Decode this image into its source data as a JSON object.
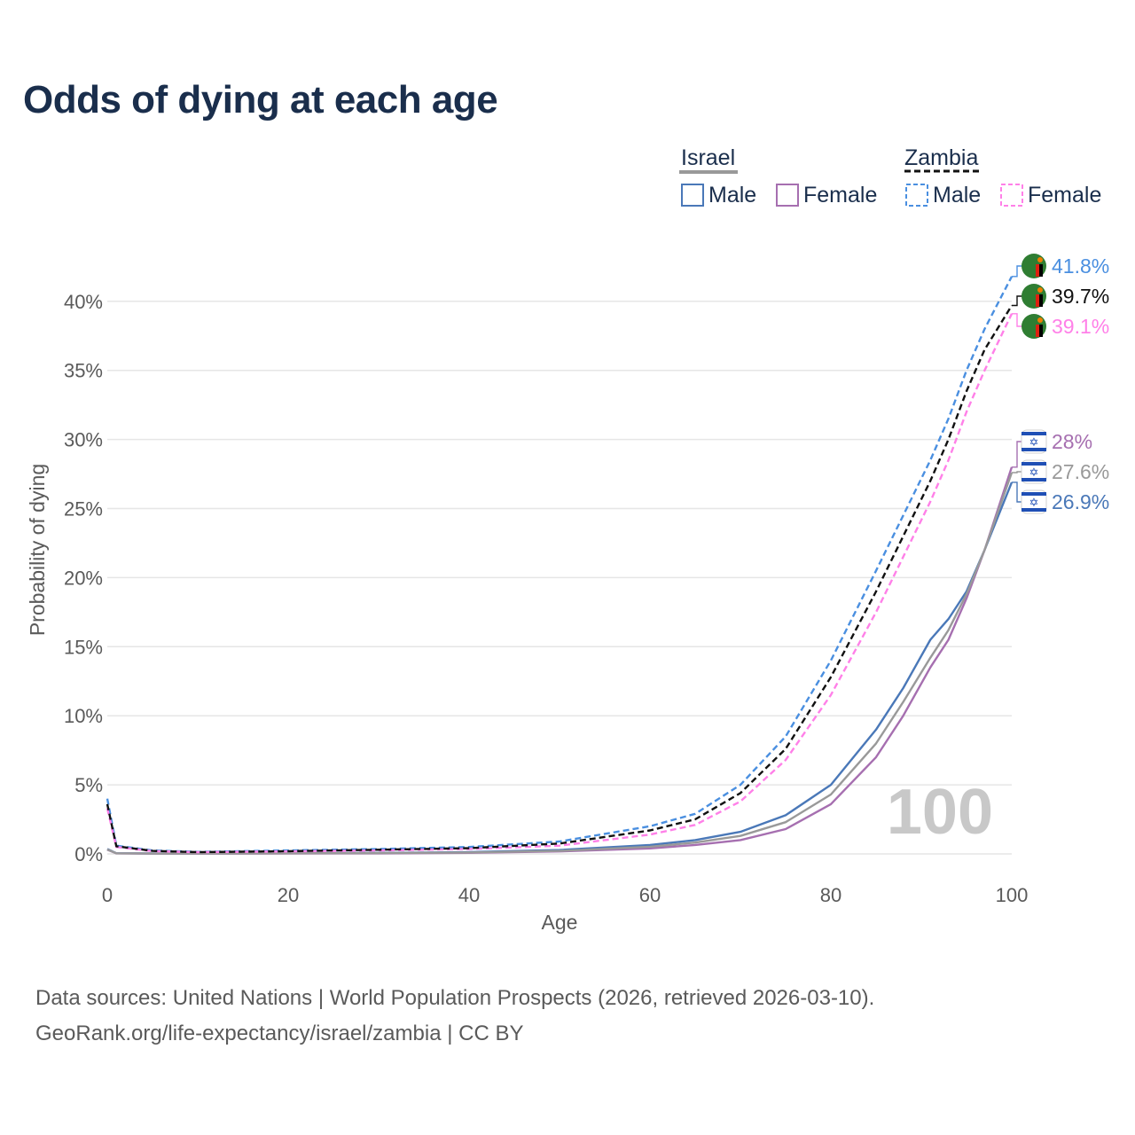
{
  "title": "Odds of dying at each age",
  "footer": {
    "line1": "Data sources: United Nations | World Population Prospects (2026, retrieved 2026-03-10).",
    "line2": "GeoRank.org/life-expectancy/israel/zambia | CC BY"
  },
  "legend": {
    "israel": {
      "label": "Israel",
      "male": "Male",
      "female": "Female"
    },
    "zambia": {
      "label": "Zambia",
      "male": "Male",
      "female": "Female"
    }
  },
  "watermark": "100",
  "colors": {
    "israel_male": "#4a78b8",
    "israel_female": "#a66fb0",
    "israel_total": "#999999",
    "zambia_male": "#4a8fe0",
    "zambia_female": "#ff80e8",
    "zambia_total": "#111111",
    "grid": "#e6e6e6",
    "title": "#1a2e4c"
  },
  "chart_data": {
    "type": "line",
    "title": "Odds of dying at each age",
    "xlabel": "Age",
    "ylabel": "Probability of dying",
    "xlim": [
      0,
      100
    ],
    "ylim": [
      0,
      45
    ],
    "x_ticks": [
      "0",
      "20",
      "40",
      "60",
      "80",
      "100"
    ],
    "y_ticks": [
      "0%",
      "5%",
      "10%",
      "15%",
      "20%",
      "25%",
      "30%",
      "35%",
      "40%"
    ],
    "x": [
      0,
      1,
      5,
      10,
      20,
      30,
      40,
      50,
      60,
      65,
      70,
      75,
      80,
      85,
      88,
      91,
      93,
      95,
      97,
      100
    ],
    "series": [
      {
        "name": "Israel Male",
        "country": "israel",
        "style": "solid",
        "color_key": "israel_male",
        "end_label": "26.9%",
        "values": [
          0.35,
          0.05,
          0.03,
          0.03,
          0.06,
          0.08,
          0.13,
          0.28,
          0.65,
          1.0,
          1.6,
          2.8,
          5.0,
          9.0,
          12.0,
          15.5,
          17.0,
          19.0,
          22.0,
          26.9
        ]
      },
      {
        "name": "Israel Female",
        "country": "israel",
        "style": "solid",
        "color_key": "israel_female",
        "end_label": "28%",
        "values": [
          0.3,
          0.04,
          0.02,
          0.02,
          0.03,
          0.04,
          0.08,
          0.18,
          0.4,
          0.65,
          1.0,
          1.8,
          3.6,
          7.0,
          10.0,
          13.5,
          15.5,
          18.5,
          22.0,
          28.0
        ]
      },
      {
        "name": "Israel Total",
        "country": "israel",
        "style": "solid",
        "color_key": "israel_total",
        "end_label": "27.6%",
        "values": [
          0.32,
          0.045,
          0.025,
          0.025,
          0.045,
          0.06,
          0.1,
          0.22,
          0.52,
          0.82,
          1.3,
          2.3,
          4.3,
          8.0,
          11.0,
          14.2,
          16.2,
          18.8,
          22.0,
          27.6
        ]
      },
      {
        "name": "Zambia Male",
        "country": "zambia",
        "style": "dashed",
        "color_key": "zambia_male",
        "end_label": "41.8%",
        "values": [
          4.0,
          0.6,
          0.25,
          0.15,
          0.25,
          0.35,
          0.5,
          0.9,
          2.0,
          2.9,
          5.0,
          8.5,
          14.0,
          20.5,
          24.5,
          28.5,
          31.5,
          35.0,
          38.0,
          41.8
        ]
      },
      {
        "name": "Zambia Female",
        "country": "zambia",
        "style": "dashed",
        "color_key": "zambia_female",
        "end_label": "39.1%",
        "values": [
          3.3,
          0.5,
          0.2,
          0.12,
          0.18,
          0.25,
          0.35,
          0.6,
          1.4,
          2.1,
          3.8,
          6.8,
          11.5,
          17.5,
          21.5,
          25.5,
          28.5,
          32.0,
          35.0,
          39.1
        ]
      },
      {
        "name": "Zambia Total",
        "country": "zambia",
        "style": "dashed",
        "color_key": "zambia_total",
        "end_label": "39.7%",
        "values": [
          3.6,
          0.55,
          0.22,
          0.13,
          0.2,
          0.3,
          0.42,
          0.75,
          1.7,
          2.5,
          4.4,
          7.6,
          12.8,
          19.0,
          23.0,
          27.0,
          30.0,
          33.5,
          36.5,
          39.7
        ]
      }
    ]
  }
}
